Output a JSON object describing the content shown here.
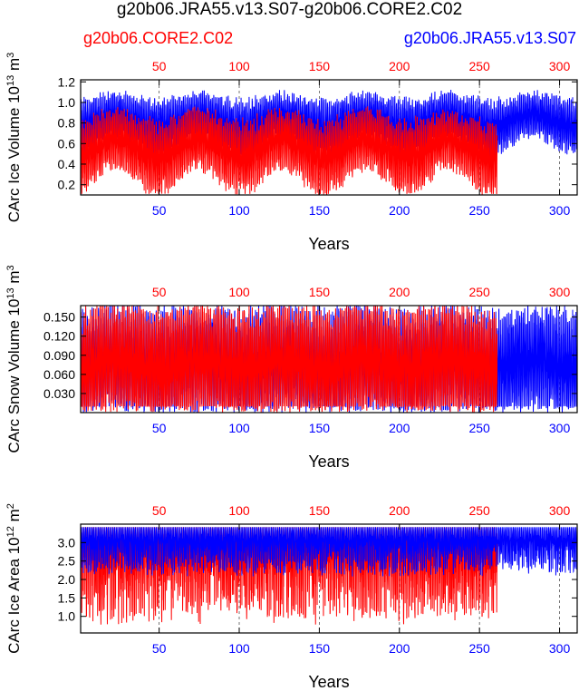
{
  "title": "g20b06.JRA55.v13.S07-g20b06.CORE2.C02",
  "legend": {
    "left": {
      "label": "g20b06.CORE2.C02",
      "color": "#ff0000"
    },
    "right": {
      "label": "g20b06.JRA55.v13.S07",
      "color": "#0000ff"
    }
  },
  "chart_data": [
    {
      "type": "line",
      "title": "",
      "ylabel_base": "CArc Ice Volume 10",
      "ylabel_exp": "13",
      "ylabel_unit": " m",
      "ylabel_unit_exp": "3",
      "xlabel": "Years",
      "xlim": [
        1,
        311
      ],
      "ylim": [
        0.1,
        1.22
      ],
      "yticks": [
        0.2,
        0.4,
        0.6,
        0.8,
        1.0,
        1.2
      ],
      "ytick_labels": [
        "0.2",
        "0.4",
        "0.6",
        "0.8",
        "1.0",
        "1.2"
      ],
      "xticks_top": [
        50,
        100,
        150,
        200,
        250,
        300
      ],
      "xticks_bottom": [
        50,
        100,
        150,
        200,
        250,
        300
      ],
      "series": [
        {
          "name": "g20b06.JRA55.v13.S07",
          "color": "#0000ff",
          "x_end": 311,
          "seasonal_max": 1.02,
          "seasonal_min": 0.62,
          "trend_amp": 0.08,
          "period": 52
        },
        {
          "name": "g20b06.CORE2.C02",
          "color": "#ff0000",
          "x_end": 261,
          "seasonal_max": 0.82,
          "seasonal_min": 0.28,
          "trend_amp": 0.12,
          "period": 52
        }
      ]
    },
    {
      "type": "line",
      "title": "",
      "ylabel_base": "CArc Snow Volume 10",
      "ylabel_exp": "13",
      "ylabel_unit": " m",
      "ylabel_unit_exp": "3",
      "xlabel": "Years",
      "xlim": [
        1,
        311
      ],
      "ylim": [
        0.0,
        0.168
      ],
      "yticks": [
        0.03,
        0.06,
        0.09,
        0.12,
        0.15
      ],
      "ytick_labels": [
        "0.030",
        "0.060",
        "0.090",
        "0.120",
        "0.150"
      ],
      "xticks_top": [
        50,
        100,
        150,
        200,
        250,
        300
      ],
      "xticks_bottom": [
        50,
        100,
        150,
        200,
        250,
        300
      ],
      "series": [
        {
          "name": "g20b06.JRA55.v13.S07",
          "color": "#0000ff",
          "x_end": 311,
          "seasonal_max": 0.15,
          "seasonal_min": 0.003,
          "trend_amp": 0.01,
          "period": 52
        },
        {
          "name": "g20b06.CORE2.C02",
          "color": "#ff0000",
          "x_end": 261,
          "seasonal_max": 0.15,
          "seasonal_min": 0.002,
          "trend_amp": 0.01,
          "period": 52
        }
      ]
    },
    {
      "type": "line",
      "title": "",
      "ylabel_base": "CArc Ice Area 10",
      "ylabel_exp": "12",
      "ylabel_unit": " m",
      "ylabel_unit_exp": "2",
      "xlabel": "Years",
      "xlim": [
        1,
        311
      ],
      "ylim": [
        0.55,
        3.5
      ],
      "yticks": [
        1.0,
        1.5,
        2.0,
        2.5,
        3.0
      ],
      "ytick_labels": [
        "1.0",
        "1.5",
        "2.0",
        "2.5",
        "3.0"
      ],
      "xticks_top": [
        50,
        100,
        150,
        200,
        250,
        300
      ],
      "xticks_bottom": [
        50,
        100,
        150,
        200,
        250,
        300
      ],
      "series": [
        {
          "name": "g20b06.CORE2.C02",
          "color": "#ff0000",
          "x_end": 261,
          "seasonal_max": 3.42,
          "seasonal_min": 1.2,
          "trend_amp": 0.3,
          "period": 52
        },
        {
          "name": "g20b06.JRA55.v13.S07",
          "color": "#0000ff",
          "x_end": 311,
          "seasonal_max": 3.42,
          "seasonal_min": 2.3,
          "trend_amp": 0.15,
          "period": 52
        }
      ]
    }
  ]
}
